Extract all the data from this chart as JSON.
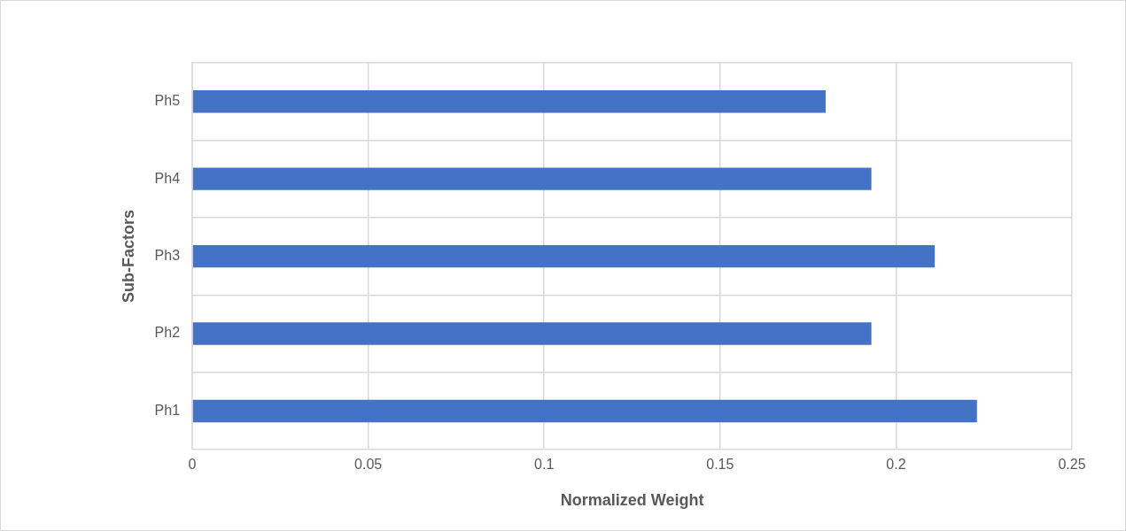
{
  "chart_data": {
    "type": "bar",
    "orientation": "horizontal",
    "xlabel": "Normalized Weight",
    "ylabel": "Sub-Factors",
    "categories": [
      "Ph5",
      "Ph4",
      "Ph3",
      "Ph2",
      "Ph1"
    ],
    "values": [
      0.18,
      0.193,
      0.211,
      0.193,
      0.223
    ],
    "color": "#4472c4",
    "xlim": [
      0,
      0.25
    ],
    "xticks": [
      0,
      0.05,
      0.1,
      0.15,
      0.2,
      0.25
    ],
    "grid": true
  }
}
